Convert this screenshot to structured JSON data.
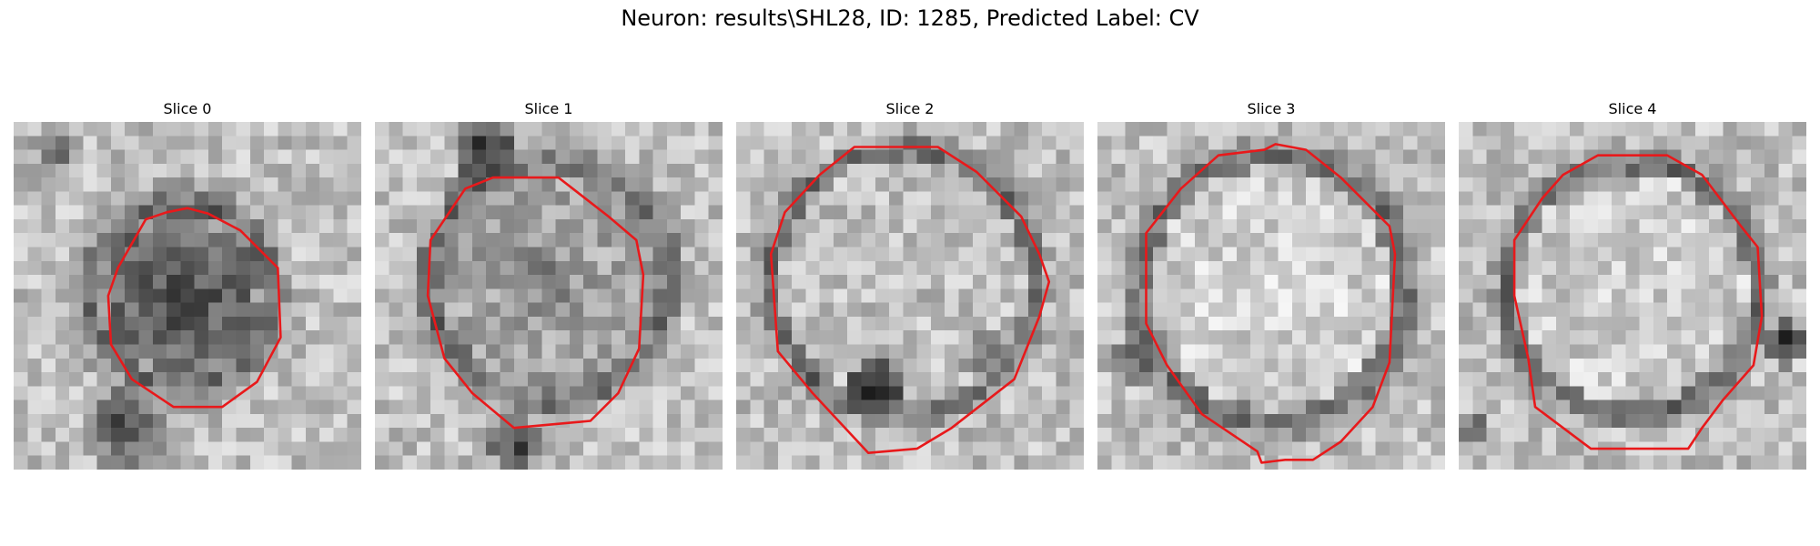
{
  "figure": {
    "title": "Neuron: results\\SHL28, ID: 1285, Predicted Label: CV"
  },
  "panels": [
    {
      "title": "Slice 0"
    },
    {
      "title": "Slice 1"
    },
    {
      "title": "Slice 2"
    },
    {
      "title": "Slice 3"
    },
    {
      "title": "Slice 4"
    }
  ],
  "colors": {
    "contour": "#e8191b",
    "background": "#ffffff"
  }
}
